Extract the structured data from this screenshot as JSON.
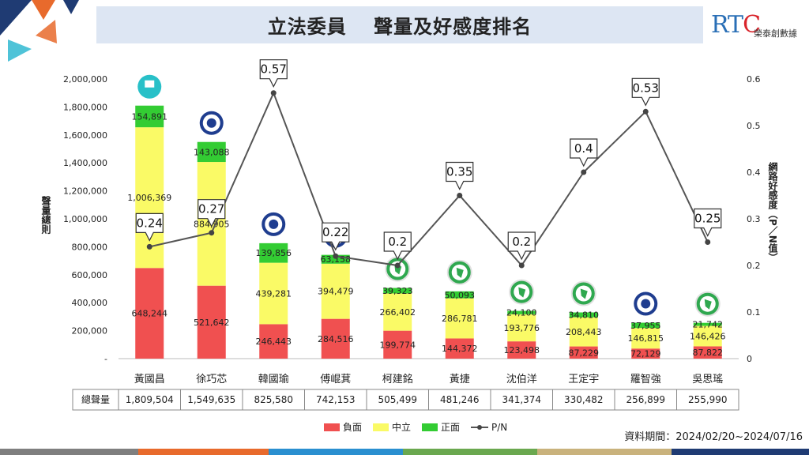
{
  "title": "立法委員　 聲量及好感度排名",
  "logo": {
    "brand_prefix": "RT",
    "brand_suffix": "C",
    "company": "榮泰創數據"
  },
  "footnote": "資料期間：2024/02/20~2024/07/16",
  "colors": {
    "negative": "#f05050",
    "neutral": "#fafa66",
    "positive": "#33cc33",
    "line": "#555555",
    "title_bg": "#dde6f3"
  },
  "chart_data": {
    "type": "bar",
    "stacked": true,
    "categories": [
      "黃國昌",
      "徐巧芯",
      "韓國瑜",
      "傅崐萁",
      "柯建銘",
      "黃捷",
      "沈伯洋",
      "王定宇",
      "羅智強",
      "吳思瑤"
    ],
    "series": [
      {
        "name": "負面",
        "color": "#f05050",
        "values": [
          648244,
          521642,
          246443,
          284516,
          199774,
          144372,
          123498,
          87229,
          72129,
          87822
        ],
        "labels": [
          "648,244",
          "521,642",
          "246,443",
          "284,516",
          "199,774",
          "144,372",
          "123,498",
          "87,229",
          "72,129",
          "87,822"
        ]
      },
      {
        "name": "中立",
        "color": "#fafa66",
        "values": [
          1006369,
          884905,
          439281,
          394479,
          266402,
          286781,
          193776,
          208443,
          146815,
          146426
        ],
        "labels": [
          "1,006,369",
          "884,905",
          "439,281",
          "394,479",
          "266,402",
          "286,781",
          "193,776",
          "208,443",
          "146,815",
          "146,426"
        ]
      },
      {
        "name": "正面",
        "color": "#33cc33",
        "values": [
          154891,
          143088,
          139856,
          63158,
          39323,
          50093,
          24100,
          34810,
          37955,
          21742
        ],
        "labels": [
          "154,891",
          "143,088",
          "139,856",
          "63,158",
          "39,323",
          "50,093",
          "24,100",
          "34,810",
          "37,955",
          "21,742"
        ]
      }
    ],
    "line": {
      "name": "P/N",
      "values": [
        0.24,
        0.27,
        0.57,
        0.22,
        0.2,
        0.35,
        0.2,
        0.4,
        0.53,
        0.25
      ],
      "labels": [
        "0.24",
        "0.27",
        "0.57",
        "0.22",
        "0.2",
        "0.35",
        "0.2",
        "0.4",
        "0.53",
        "0.25"
      ]
    },
    "ylabel": "聲量總則",
    "y2label": "網路好感度（P／N值）",
    "ylim": [
      0,
      2000000
    ],
    "y2lim": [
      0,
      0.6
    ],
    "yticks": [
      "-",
      "200,000",
      "400,000",
      "600,000",
      "800,000",
      "1,000,000",
      "1,200,000",
      "1,400,000",
      "1,600,000",
      "1,800,000",
      "2,000,000"
    ],
    "y2ticks": [
      "0",
      "0.1",
      "0.2",
      "0.3",
      "0.4",
      "0.5",
      "0.6"
    ],
    "total_row": {
      "label": "總聲量",
      "values": [
        "1,809,504",
        "1,549,635",
        "825,580",
        "742,153",
        "505,499",
        "481,246",
        "341,374",
        "330,482",
        "256,899",
        "255,990"
      ]
    },
    "party_icons": [
      "tpp",
      "kmt",
      "kmt",
      "kmt",
      "dpp",
      "dpp",
      "dpp",
      "dpp",
      "kmt",
      "dpp"
    ],
    "legend": [
      "負面",
      "中立",
      "正面",
      "P/N"
    ],
    "legend_position": "bottom",
    "grid": false
  }
}
